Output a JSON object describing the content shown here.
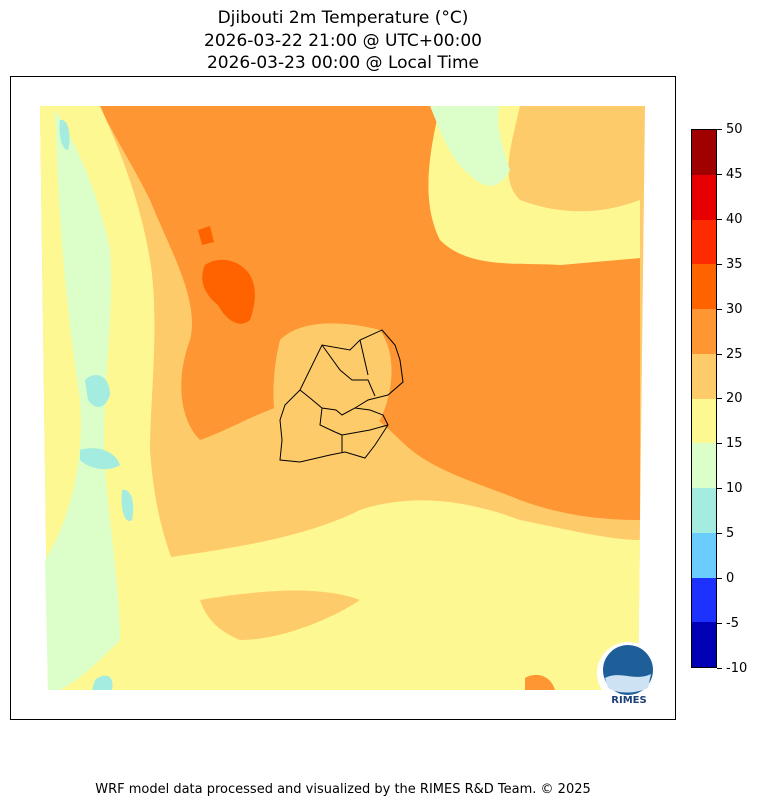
{
  "title": {
    "line1": "Djibouti 2m Temperature (°C)",
    "line2": "2026-03-22 21:00 @ UTC+00:00",
    "line3": "2026-03-23 00:00 @ Local Time"
  },
  "colorbar": {
    "ticks": [
      "50",
      "45",
      "40",
      "35",
      "30",
      "25",
      "20",
      "15",
      "10",
      "5",
      "0",
      "-5",
      "-10"
    ],
    "colors": [
      "#a00000",
      "#e60000",
      "#ff2a00",
      "#ff6300",
      "#fd9633",
      "#fecb6a",
      "#fef893",
      "#dcfec8",
      "#a4ece0",
      "#6bcdfd",
      "#1e32ff",
      "#0000b4"
    ]
  },
  "logo": {
    "text": "RIMES"
  },
  "footer": "WRF model data processed and visualized by the RIMES R&D Team. © 2025"
}
